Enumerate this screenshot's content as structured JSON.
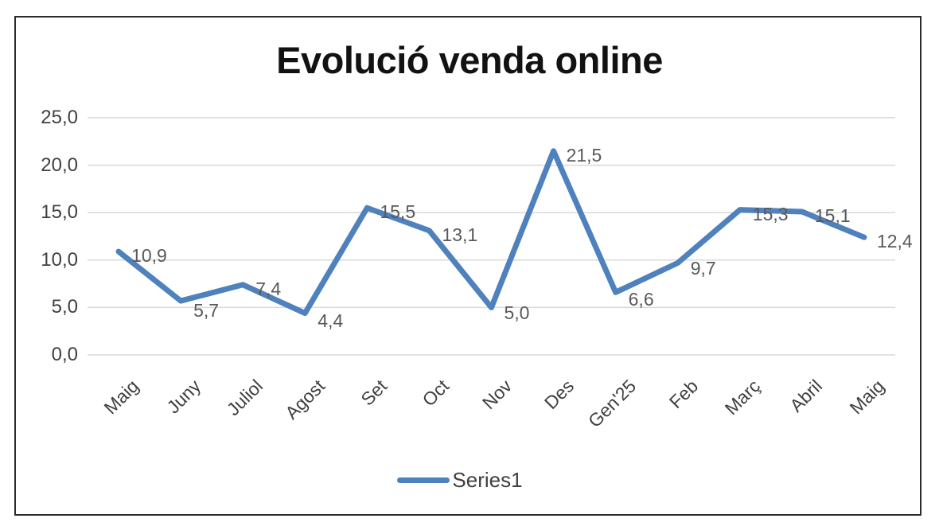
{
  "chart_data": {
    "type": "line",
    "title": "Evolució venda online",
    "categories": [
      "Maig",
      "Juny",
      "Juliol",
      "Agost",
      "Set",
      "Oct",
      "Nov",
      "Des",
      "Gen'25",
      "Feb",
      "Març",
      "Abril",
      "Maig"
    ],
    "series": [
      {
        "name": "Series1",
        "values": [
          10.9,
          5.7,
          7.4,
          4.4,
          15.5,
          13.1,
          5.0,
          21.5,
          6.6,
          9.7,
          15.3,
          15.1,
          12.4
        ]
      }
    ],
    "value_labels": [
      "10,9",
      "5,7",
      "7,4",
      "4,4",
      "15,5",
      "13,1",
      "5,0",
      "21,5",
      "6,6",
      "9,7",
      "15,3",
      "15,1",
      "12,4"
    ],
    "y_ticks": [
      "0,0",
      "5,0",
      "10,0",
      "15,0",
      "20,0",
      "25,0"
    ],
    "ylim": [
      0,
      25
    ],
    "y_step": 5,
    "grid": true,
    "legend_position": "bottom",
    "line_color": "#4f81bd",
    "gridline_color": "#d9d9d9",
    "axis_text_color": "#404040",
    "data_label_color": "#595959",
    "frame_border_color": "#2a2a2a",
    "background_color": "#ffffff"
  }
}
